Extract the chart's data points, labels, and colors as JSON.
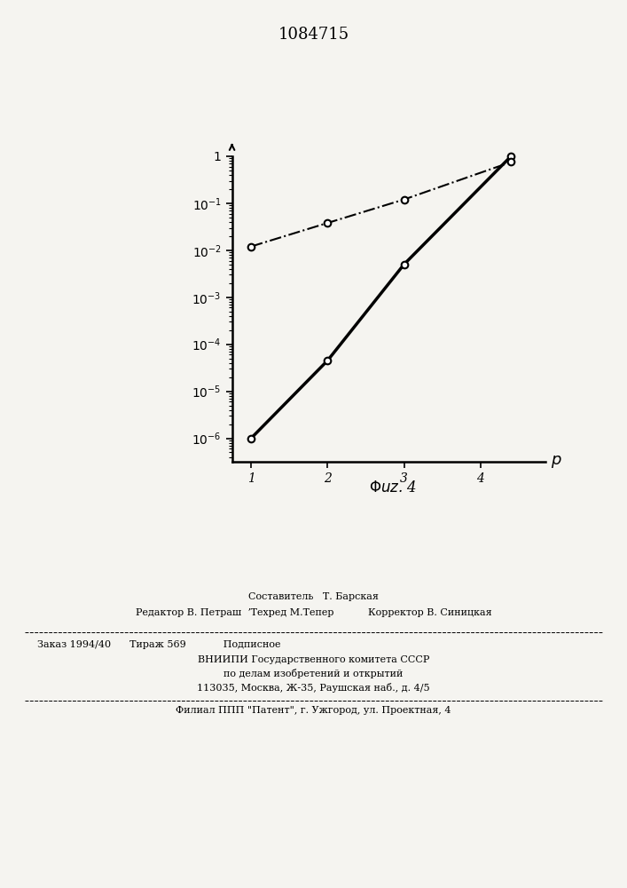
{
  "title": "1084715",
  "ytick_values": [
    1e-06,
    1e-05,
    0.0001,
    0.001,
    0.01,
    0.1,
    1
  ],
  "xtick_values": [
    1,
    2,
    3,
    4
  ],
  "line1_x": [
    1,
    2,
    3,
    4.4
  ],
  "line1_y": [
    1e-06,
    4.5e-05,
    0.005,
    1.0
  ],
  "line2_x": [
    1,
    2,
    3,
    4.4
  ],
  "line2_y": [
    0.012,
    0.038,
    0.12,
    0.75
  ],
  "background_color": "#f5f4f0",
  "line1_color": "#000000",
  "line2_color": "#000000",
  "text_color": "#000000",
  "footer_sestavitel": "Составитель   Т. Барская",
  "footer_redaktor": "Редактор В. Петраш  ʼТехред М.Тепер           Корректор В. Синицкая",
  "footer_zakaz": "Заказ 1994/40      Тираж 569            Подписное",
  "footer_vniip": "ВНИИПИ Государственного комитета СССР",
  "footer_po": "по делам изобретений и открытий",
  "footer_addr": "113035, Москва, Ж-35, Раушская наб., д. 4/5",
  "footer_filial": "Филиал ППП \"Патент\", г. Ужгород, ул. Проектная, 4"
}
